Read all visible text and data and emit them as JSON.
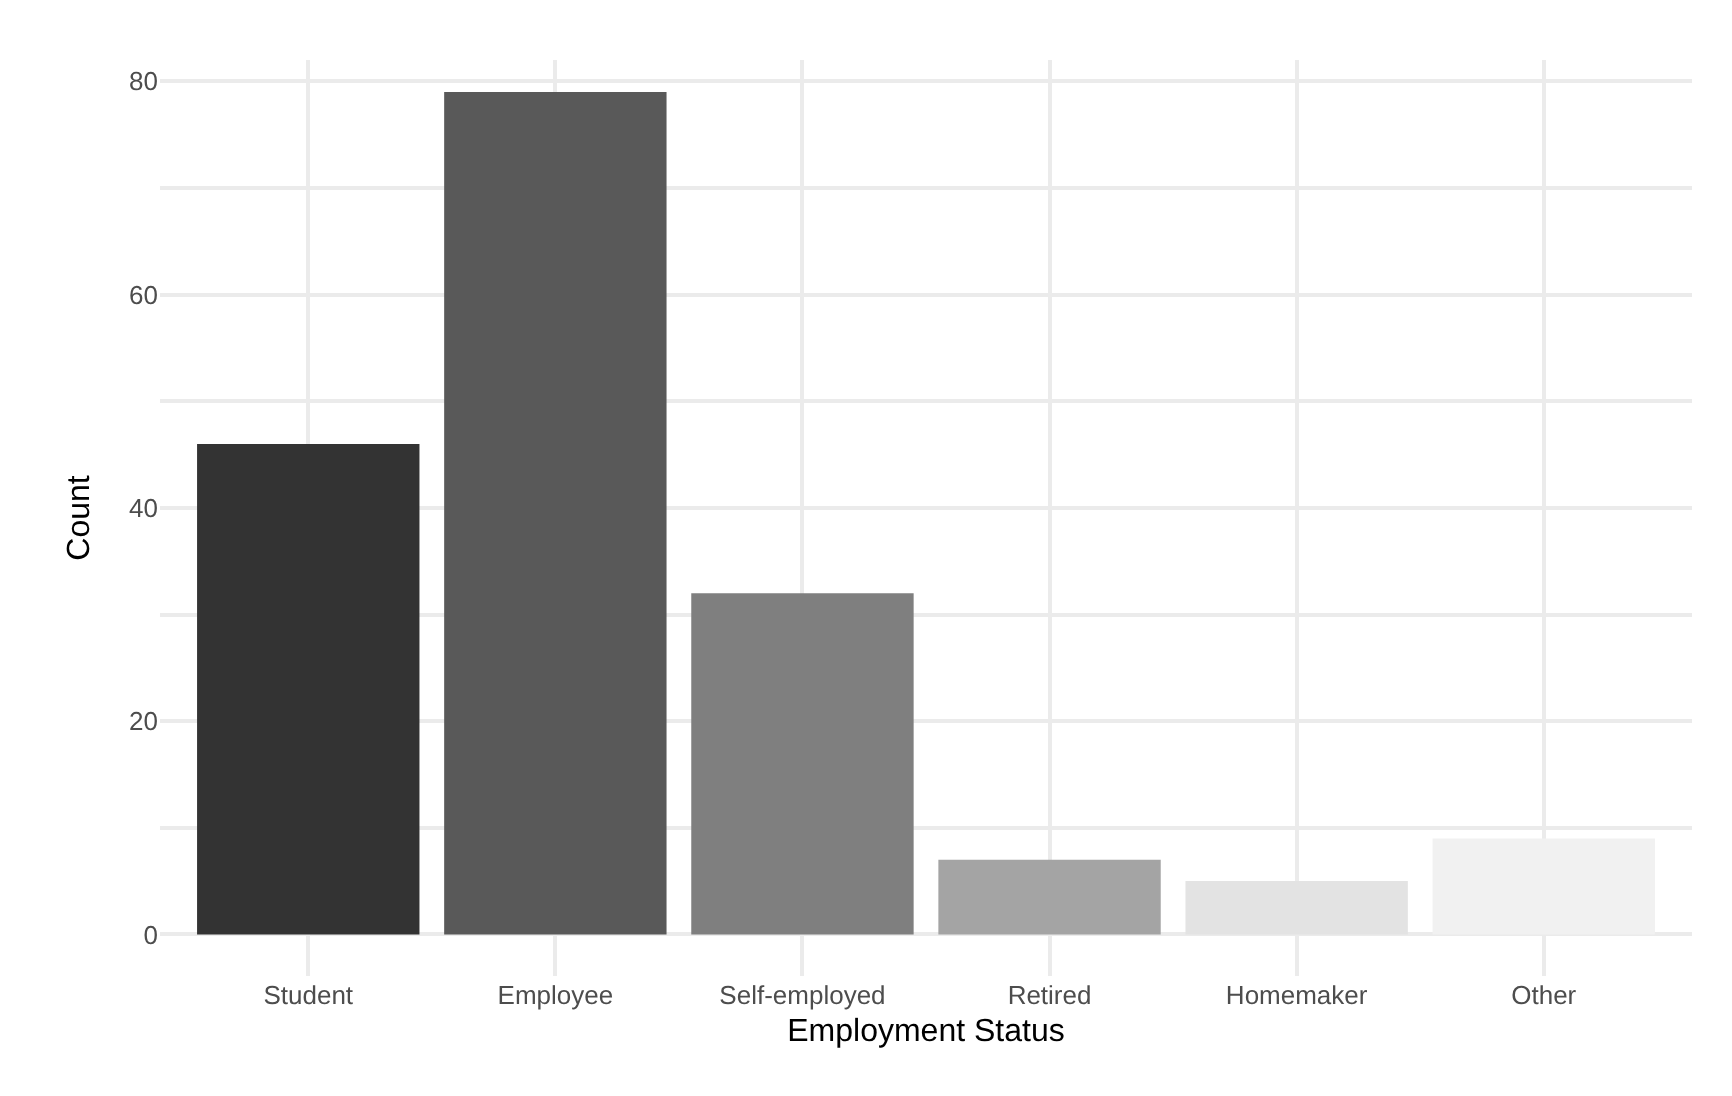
{
  "chart_data": {
    "type": "bar",
    "xlabel": "Employment Status",
    "ylabel": "Count",
    "categories": [
      "Student",
      "Employee",
      "Self-employed",
      "Retired",
      "Homemaker",
      "Other"
    ],
    "values": [
      46,
      79,
      32,
      7,
      5,
      9
    ],
    "colors": [
      "#333333",
      "#595959",
      "#7f7f7f",
      "#a4a4a4",
      "#e3e3e3",
      "#f1f1f1"
    ],
    "ylim": [
      -3.9,
      82
    ],
    "yticks": [
      0,
      {
        "value": 10,
        "label": null
      },
      20,
      {
        "value": 30,
        "label": null
      },
      40,
      {
        "value": 50,
        "label": null
      },
      60,
      {
        "value": 70,
        "label": null
      },
      80
    ],
    "grid": true,
    "legend": false
  }
}
